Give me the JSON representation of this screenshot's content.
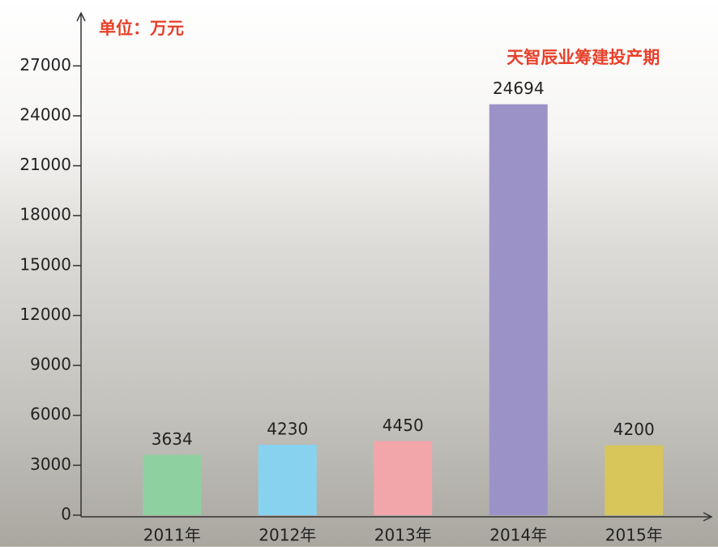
{
  "chart_data": {
    "type": "bar",
    "unit_label": "单位：万元",
    "annotation": "天智辰业筹建投产期",
    "categories": [
      "2011年",
      "2012年",
      "2013年",
      "2014年",
      "2015年"
    ],
    "values": [
      3634,
      4230,
      4450,
      24694,
      4200
    ],
    "colors": [
      "#8fd0a0",
      "#87d3ef",
      "#f2a6a9",
      "#9b93c8",
      "#d8c65b"
    ],
    "ylim": [
      0,
      29500
    ],
    "yticks": [
      0,
      3000,
      6000,
      9000,
      12000,
      15000,
      18000,
      21000,
      24000,
      27000
    ],
    "annotation_color": "#e8402a"
  }
}
